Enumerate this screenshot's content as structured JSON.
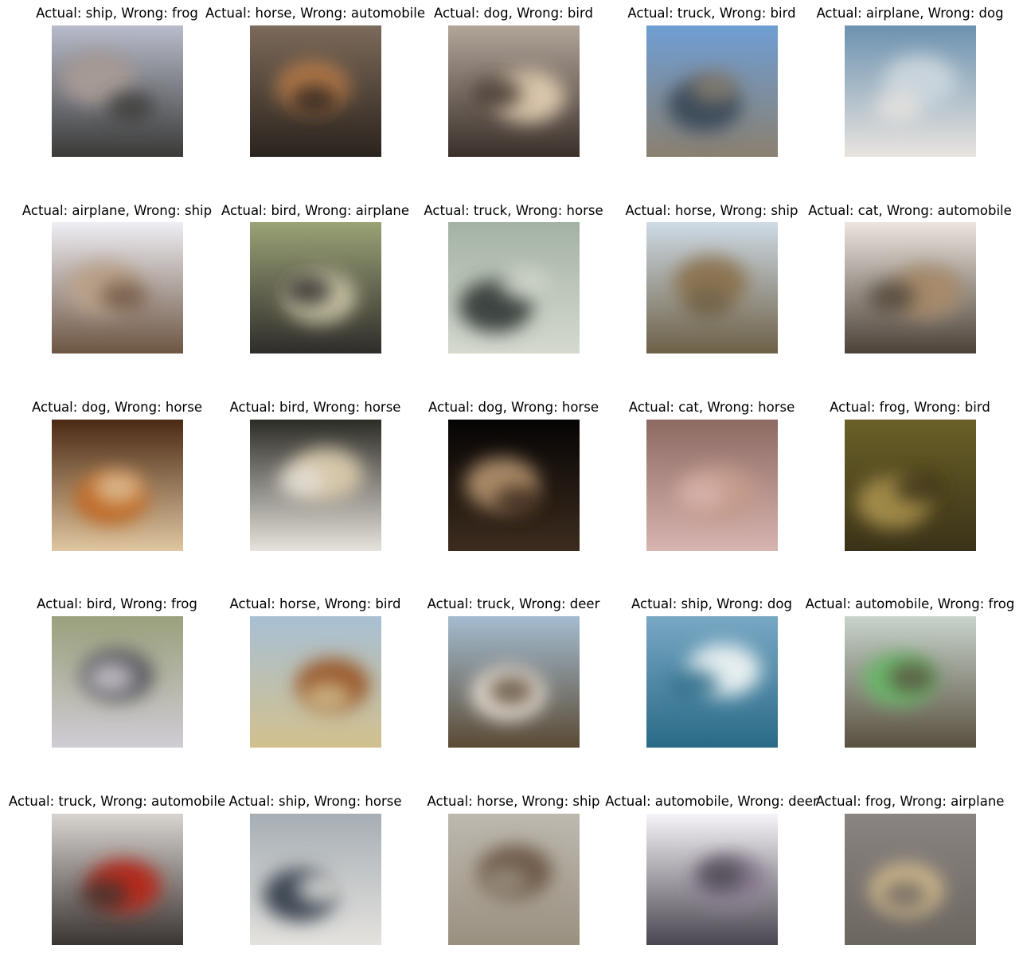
{
  "figure": {
    "rows": 5,
    "cols": 5,
    "cells": [
      {
        "actual": "ship",
        "wrong": "frog",
        "title": "Actual: ship, Wrong: frog",
        "palette": [
          "#b9bccb",
          "#a59a94",
          "#3a3a38"
        ]
      },
      {
        "actual": "horse",
        "wrong": "automobile",
        "title": "Actual: horse, Wrong: automobile",
        "palette": [
          "#7c6a5a",
          "#b0784a",
          "#2a231d"
        ]
      },
      {
        "actual": "dog",
        "wrong": "bird",
        "title": "Actual: dog, Wrong: bird",
        "palette": [
          "#b2a59a",
          "#d8c5aa",
          "#3a302a"
        ]
      },
      {
        "actual": "truck",
        "wrong": "bird",
        "title": "Actual: truck, Wrong: bird",
        "palette": [
          "#6f9ed4",
          "#3d4b5a",
          "#8a8070"
        ]
      },
      {
        "actual": "airplane",
        "wrong": "dog",
        "title": "Actual: airplane, Wrong: dog",
        "palette": [
          "#6c92b0",
          "#c9d4db",
          "#e9e4df"
        ]
      },
      {
        "actual": "airplane",
        "wrong": "ship",
        "title": "Actual: airplane, Wrong: ship",
        "palette": [
          "#eeeef4",
          "#b9a18a",
          "#6d5542"
        ]
      },
      {
        "actual": "bird",
        "wrong": "airplane",
        "title": "Actual: bird, Wrong: airplane",
        "palette": [
          "#9aa276",
          "#c4c0a2",
          "#2f2c2a"
        ]
      },
      {
        "actual": "truck",
        "wrong": "horse",
        "title": "Actual: truck, Wrong: horse",
        "palette": [
          "#a3b2a3",
          "#3c4443",
          "#d5d9cf"
        ]
      },
      {
        "actual": "horse",
        "wrong": "ship",
        "title": "Actual: horse, Wrong: ship",
        "palette": [
          "#cfdbe6",
          "#8c7452",
          "#6d6046"
        ]
      },
      {
        "actual": "cat",
        "wrong": "automobile",
        "title": "Actual: cat, Wrong: automobile",
        "palette": [
          "#ece6df",
          "#a68a6a",
          "#4c4238"
        ]
      },
      {
        "actual": "dog",
        "wrong": "horse",
        "title": "Actual: dog, Wrong: horse",
        "palette": [
          "#4a2a14",
          "#c06a28",
          "#e0c6a0"
        ]
      },
      {
        "actual": "bird",
        "wrong": "horse",
        "title": "Actual: bird, Wrong: horse",
        "palette": [
          "#2c2c26",
          "#d4c6a8",
          "#e6e2dc"
        ]
      },
      {
        "actual": "dog",
        "wrong": "horse",
        "title": "Actual: dog, Wrong: horse",
        "palette": [
          "#060404",
          "#a98a68",
          "#3c2c1e"
        ]
      },
      {
        "actual": "cat",
        "wrong": "horse",
        "title": "Actual: cat, Wrong: horse",
        "palette": [
          "#8c6a62",
          "#c49c8c",
          "#d8b4b0"
        ]
      },
      {
        "actual": "frog",
        "wrong": "bird",
        "title": "Actual: frog, Wrong: bird",
        "palette": [
          "#6a6028",
          "#a08a4a",
          "#3a3218"
        ]
      },
      {
        "actual": "bird",
        "wrong": "frog",
        "title": "Actual: bird, Wrong: frog",
        "palette": [
          "#9aa07c",
          "#5a5a5e",
          "#d0ccd4"
        ]
      },
      {
        "actual": "horse",
        "wrong": "bird",
        "title": "Actual: horse, Wrong: bird",
        "palette": [
          "#a8c0d4",
          "#9a5a2e",
          "#d2c08e"
        ]
      },
      {
        "actual": "truck",
        "wrong": "deer",
        "title": "Actual: truck, Wrong: deer",
        "palette": [
          "#a4bcd0",
          "#ece4dc",
          "#5a4a34"
        ]
      },
      {
        "actual": "ship",
        "wrong": "dog",
        "title": "Actual: ship, Wrong: dog",
        "palette": [
          "#78a8c4",
          "#e6eef0",
          "#2a6a86"
        ]
      },
      {
        "actual": "automobile",
        "wrong": "frog",
        "title": "Actual: automobile, Wrong: frog",
        "palette": [
          "#c8d4cc",
          "#6ab86a",
          "#5a5040"
        ]
      },
      {
        "actual": "truck",
        "wrong": "automobile",
        "title": "Actual: truck, Wrong: automobile",
        "palette": [
          "#d8d4d0",
          "#b42a1c",
          "#3a3432"
        ]
      },
      {
        "actual": "ship",
        "wrong": "horse",
        "title": "Actual: ship, Wrong: horse",
        "palette": [
          "#a6aeb4",
          "#3c4652",
          "#e4e2de"
        ]
      },
      {
        "actual": "horse",
        "wrong": "ship",
        "title": "Actual: horse, Wrong: ship",
        "palette": [
          "#bdb9b0",
          "#6e5a4a",
          "#9a9080"
        ]
      },
      {
        "actual": "automobile",
        "wrong": "deer",
        "title": "Actual: automobile, Wrong: deer",
        "palette": [
          "#f6f4f8",
          "#8a7e90",
          "#4a4650"
        ]
      },
      {
        "actual": "frog",
        "wrong": "airplane",
        "title": "Actual: frog, Wrong: airplane",
        "palette": [
          "#8a8482",
          "#d4bc8e",
          "#6c6660"
        ]
      }
    ]
  }
}
